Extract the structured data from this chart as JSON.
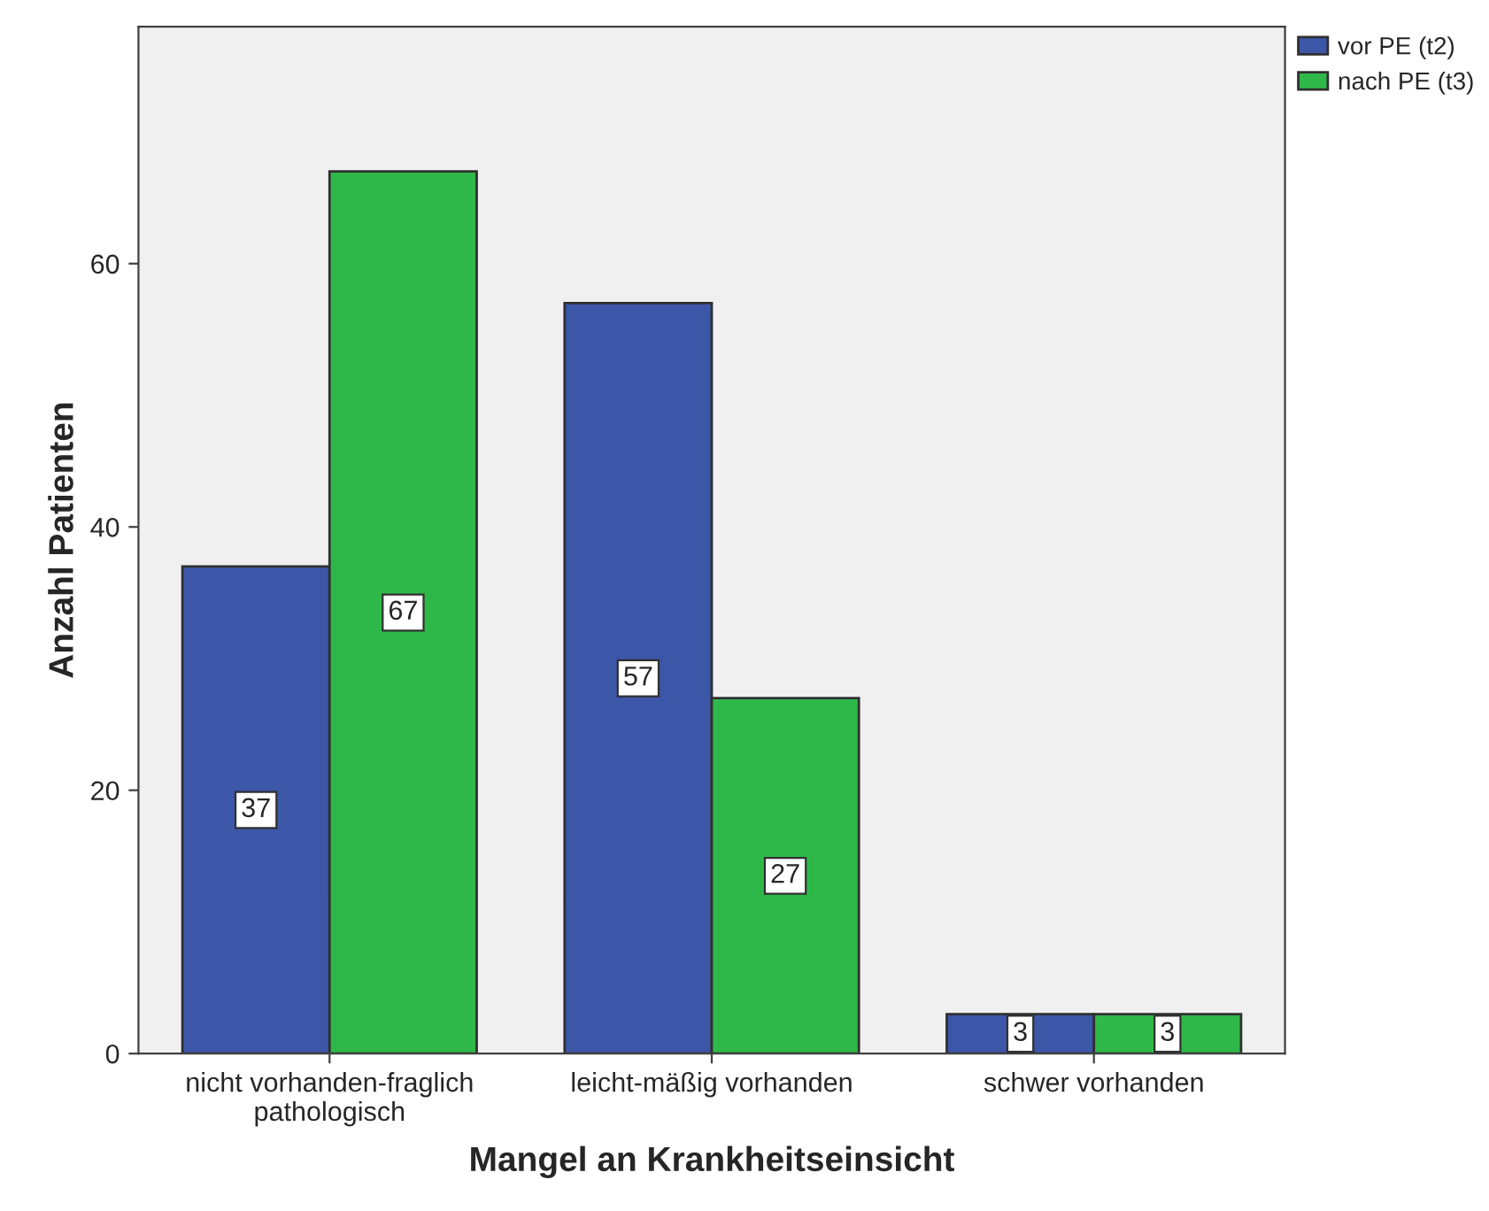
{
  "chart_data": {
    "type": "bar",
    "xlabel": "Mangel an Krankheitseinsicht",
    "ylabel": "Anzahl Patienten",
    "categories": [
      "nicht vorhanden-fraglich\npathologisch",
      "leicht-mäßig vorhanden",
      "schwer vorhanden"
    ],
    "series": [
      {
        "name": "vor PE (t2)",
        "color": "#3c56a8",
        "values": [
          37,
          57,
          3
        ]
      },
      {
        "name": "nach PE (t3)",
        "color": "#2fb84a",
        "values": [
          67,
          27,
          3
        ]
      }
    ],
    "ylim": [
      0,
      78
    ],
    "yticks": [
      0,
      20,
      40,
      60
    ],
    "grid": false,
    "legend": "top right",
    "data_labels": true
  }
}
